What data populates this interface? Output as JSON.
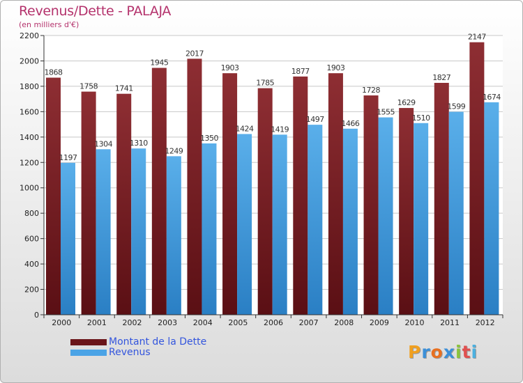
{
  "header": {
    "title": "Revenus/Dette - PALAJA",
    "subtitle": "(en milliers d'€)"
  },
  "legend": {
    "dette_label": "Montant de la Dette",
    "revenus_label": "Revenus"
  },
  "logo": {
    "text": "Proxiti",
    "letters": [
      "P",
      "r",
      "o",
      "x",
      "i",
      "t",
      "i"
    ],
    "colors": [
      "#f0a020",
      "#3b8fd8",
      "#e87020",
      "#3b8fd8",
      "#8ac43c",
      "#e05050",
      "#4bb0e0"
    ]
  },
  "colors": {
    "dette": "#7a1f24",
    "dette_light": "#8e2e33",
    "revenus": "#3d9be0",
    "revenus_light": "#5aafea"
  },
  "chart_data": {
    "type": "bar",
    "title": "Revenus/Dette - PALAJA",
    "subtitle": "(en milliers d'€)",
    "categories": [
      "2000",
      "2001",
      "2002",
      "2003",
      "2004",
      "2005",
      "2006",
      "2007",
      "2008",
      "2009",
      "2010",
      "2011",
      "2012"
    ],
    "series": [
      {
        "name": "Montant de la Dette",
        "values": [
          1868,
          1758,
          1741,
          1945,
          2017,
          1903,
          1785,
          1877,
          1903,
          1728,
          1629,
          1827,
          2147
        ]
      },
      {
        "name": "Revenus",
        "values": [
          1197,
          1304,
          1310,
          1249,
          1350,
          1424,
          1419,
          1497,
          1466,
          1555,
          1510,
          1599,
          1674
        ]
      }
    ],
    "ylim": [
      0,
      2200
    ],
    "yticks": [
      0,
      200,
      400,
      600,
      800,
      1000,
      1200,
      1400,
      1600,
      1800,
      2000,
      2200
    ],
    "grid": true,
    "legend_position": "bottom-left"
  }
}
